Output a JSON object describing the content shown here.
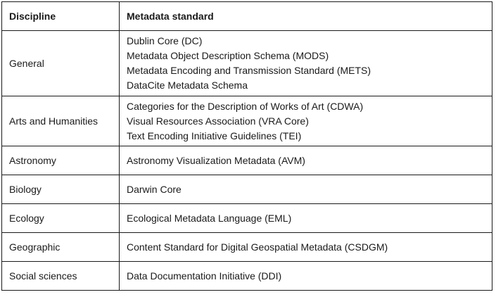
{
  "table": {
    "headers": {
      "discipline": "Discipline",
      "standard": "Metadata standard"
    },
    "rows": [
      {
        "discipline": "General",
        "standards": [
          "Dublin Core (DC)",
          "Metadata Object Description Schema (MODS)",
          "Metadata Encoding and Transmission Standard (METS)",
          "DataCite Metadata Schema"
        ]
      },
      {
        "discipline": "Arts and Humanities",
        "standards": [
          "Categories for the Description of Works of Art (CDWA)",
          "Visual Resources Association (VRA Core)",
          "Text Encoding Initiative Guidelines (TEI)"
        ]
      },
      {
        "discipline": "Astronomy",
        "standards": [
          "Astronomy Visualization Metadata (AVM)"
        ]
      },
      {
        "discipline": "Biology",
        "standards": [
          "Darwin Core"
        ]
      },
      {
        "discipline": "Ecology",
        "standards": [
          "Ecological Metadata Language (EML)"
        ]
      },
      {
        "discipline": "Geographic",
        "standards": [
          "Content Standard for Digital Geospatial Metadata (CSDGM)"
        ]
      },
      {
        "discipline": "Social sciences",
        "standards": [
          "Data Documentation Initiative (DDI)"
        ]
      }
    ]
  }
}
